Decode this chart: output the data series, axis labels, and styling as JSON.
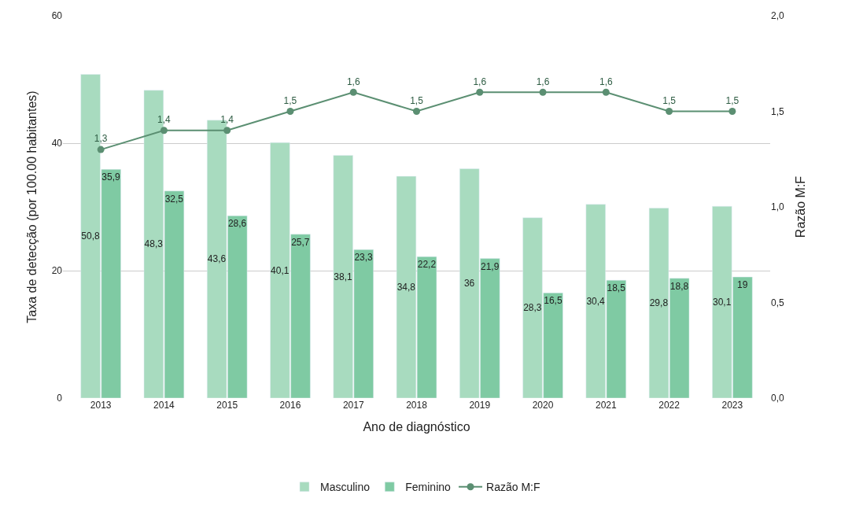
{
  "chart_data": {
    "type": "bar",
    "xlabel": "Ano de diagnóstico",
    "ylabel": "Taxa de detecção (por 100.00 habitantes)",
    "y2label": "Razão M:F",
    "categories": [
      "2013",
      "2014",
      "2015",
      "2016",
      "2017",
      "2018",
      "2019",
      "2020",
      "2021",
      "2022",
      "2023"
    ],
    "series": [
      {
        "name": "Masculino",
        "color": "#a8dbbf",
        "values": [
          50.8,
          48.3,
          43.6,
          40.1,
          38.1,
          34.8,
          36,
          28.3,
          30.4,
          29.8,
          30.1
        ],
        "value_labels": [
          "50,8",
          "48,3",
          "43,6",
          "40,1",
          "38,1",
          "34,8",
          "36",
          "28,3",
          "30,4",
          "29,8",
          "30,1"
        ]
      },
      {
        "name": "Feminino",
        "color": "#7fcaa3",
        "values": [
          35.9,
          32.5,
          28.6,
          25.7,
          23.3,
          22.2,
          21.9,
          16.5,
          18.5,
          18.8,
          19
        ],
        "value_labels": [
          "35,9",
          "32,5",
          "28,6",
          "25,7",
          "23,3",
          "22,2",
          "21,9",
          "16,5",
          "18,5",
          "18,8",
          "19"
        ]
      },
      {
        "name": "Razão M:F",
        "type": "line",
        "axis": "y2",
        "color": "#5b8f72",
        "marker": "circle",
        "values": [
          1.3,
          1.4,
          1.4,
          1.5,
          1.6,
          1.5,
          1.6,
          1.6,
          1.6,
          1.5,
          1.5
        ],
        "value_labels": [
          "1,3",
          "1,4",
          "1,4",
          "1,5",
          "1,6",
          "1,5",
          "1,6",
          "1,6",
          "1,6",
          "1,5",
          "1,5"
        ]
      }
    ],
    "ylim": [
      0,
      60
    ],
    "yticks": [
      0,
      20,
      40,
      60
    ],
    "y2lim": [
      0,
      2
    ],
    "y2ticks": [
      {
        "value": 0,
        "label": "0,0"
      },
      {
        "value": 0.5,
        "label": "0,5"
      },
      {
        "value": 1,
        "label": "1,0"
      },
      {
        "value": 1.5,
        "label": "1,5"
      },
      {
        "value": 2,
        "label": "2,0"
      }
    ],
    "grid": "y",
    "legend": "bottom"
  }
}
